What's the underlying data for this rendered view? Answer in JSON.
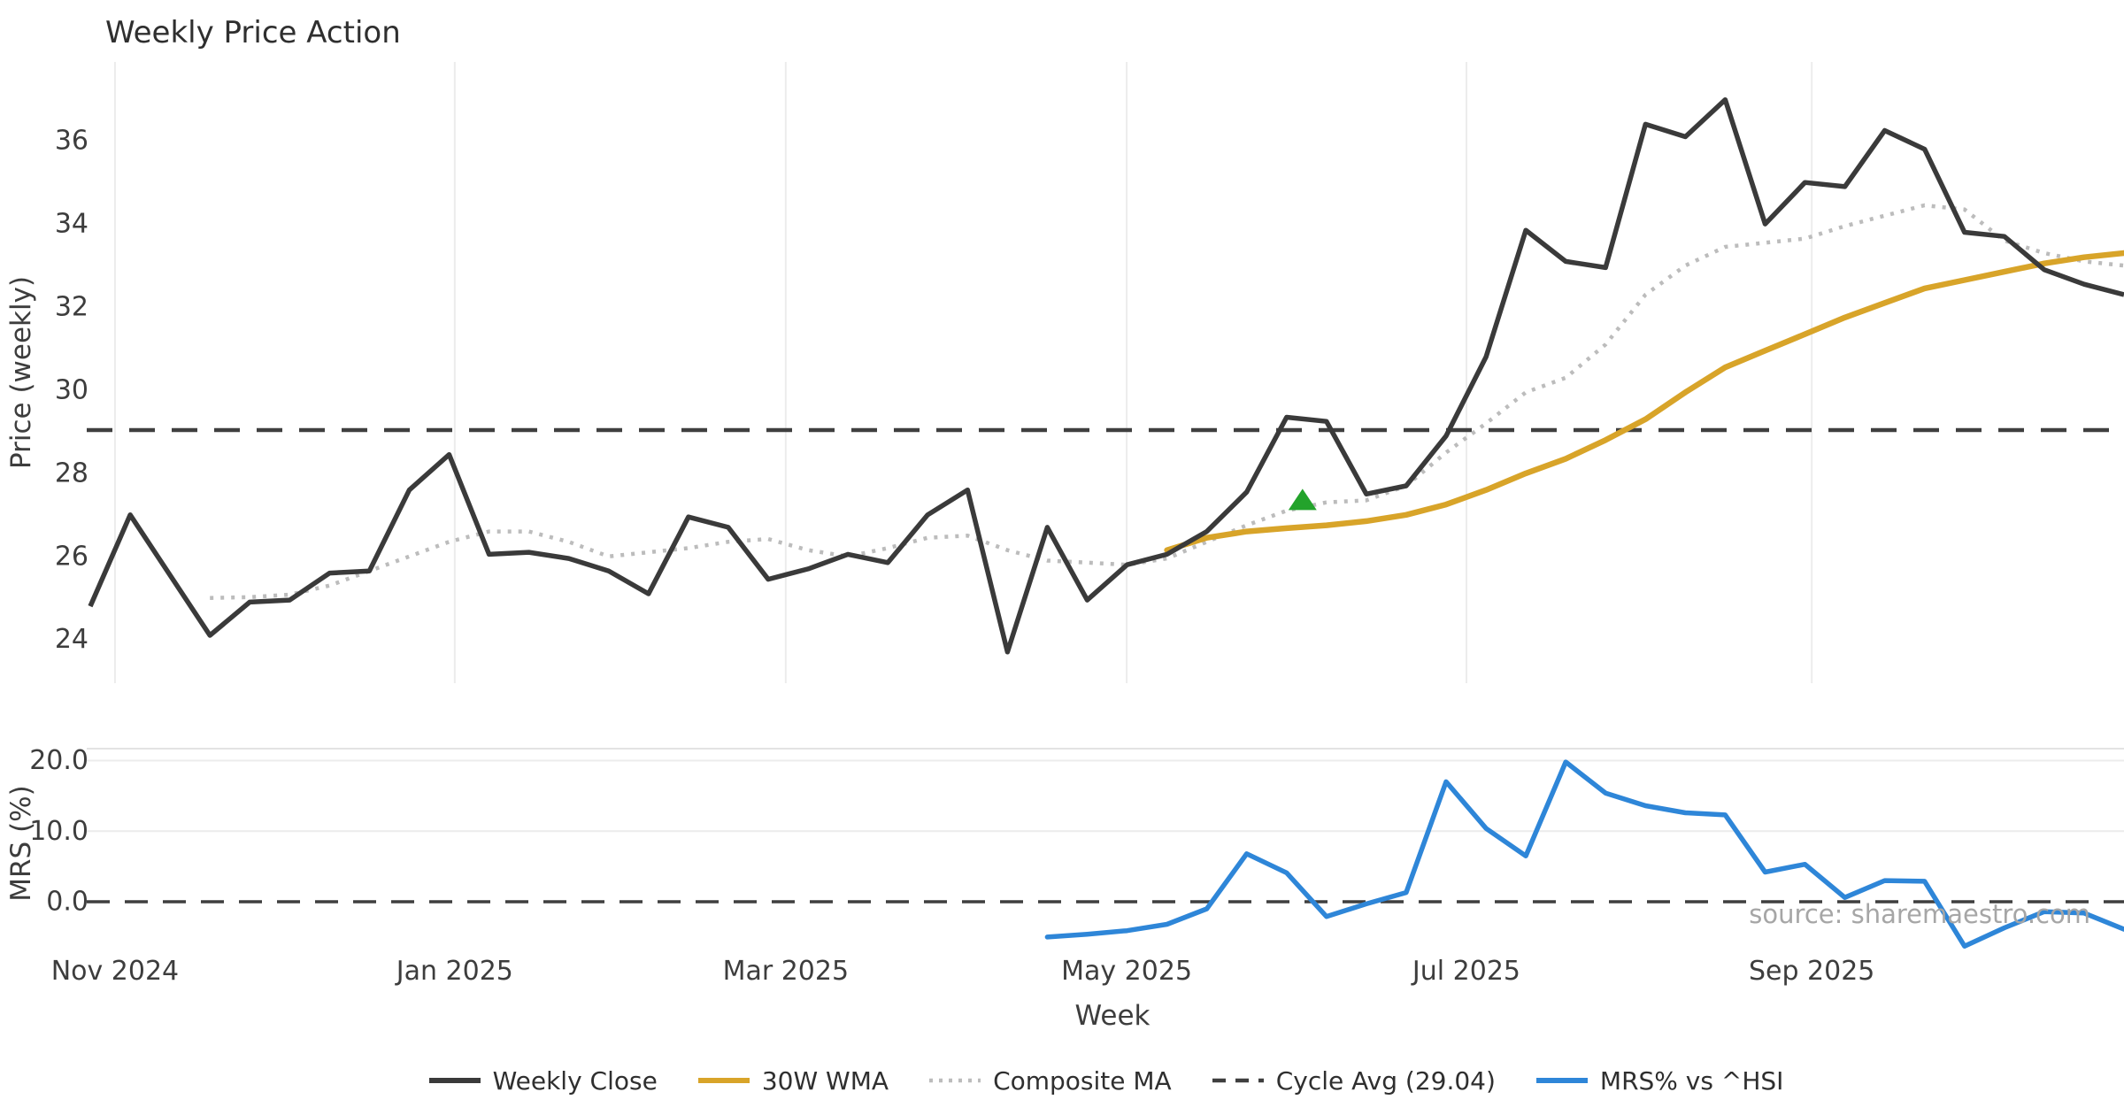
{
  "title": "Weekly Price Action",
  "source_text": "source: sharemaestro.com",
  "axes": {
    "price_label": "Price (weekly)",
    "mrs_label": "MRS (%)",
    "x_label": "Week"
  },
  "colors": {
    "weekly_close": "#3a3a3a",
    "wma": "#d8a429",
    "composite": "#bcbcbc",
    "cycle_avg": "#3f3f3f",
    "mrs": "#2e86d8",
    "signal": "#23a32b",
    "grid": "#ececec",
    "spine": "#e3e3e3",
    "text": "#3d3d3d",
    "muted": "#a6a6a6"
  },
  "chart_data": [
    {
      "type": "line",
      "panel": "price",
      "title": "Weekly Price Action",
      "ylabel": "Price (weekly)",
      "ylim": [
        22.95,
        37.9
      ],
      "yticks": [
        24,
        26,
        28,
        30,
        32,
        34,
        36
      ],
      "x_tick_labels": [
        "Nov 2024",
        "Jan 2025",
        "Mar 2025",
        "May 2025",
        "Jul 2025",
        "Sep 2025"
      ],
      "x_tick_weeks": [
        0.62,
        9.14,
        17.44,
        25.99,
        34.51,
        43.17
      ],
      "n_weeks": 52,
      "grid": "vertical",
      "cycle_avg": 29.04,
      "signal_marker": {
        "week": 30.4,
        "price": 27.35,
        "shape": "triangle-up"
      },
      "series": [
        {
          "name": "Weekly Close",
          "values": [
            24.8,
            27.0,
            25.55,
            24.1,
            24.9,
            24.95,
            25.6,
            25.65,
            27.6,
            28.45,
            26.05,
            26.1,
            25.95,
            25.65,
            25.1,
            26.95,
            26.7,
            25.45,
            25.7,
            26.05,
            25.85,
            27.0,
            27.6,
            23.7,
            26.7,
            24.95,
            25.8,
            26.05,
            26.6,
            27.55,
            29.35,
            29.25,
            27.5,
            27.7,
            28.9,
            30.8,
            33.85,
            33.1,
            32.95,
            36.4,
            36.1,
            36.99,
            34.0,
            35.0,
            34.9,
            36.25,
            35.8,
            33.8,
            33.7,
            32.9,
            32.55,
            32.3
          ]
        },
        {
          "name": "30W WMA",
          "values": [
            null,
            null,
            null,
            null,
            null,
            null,
            null,
            null,
            null,
            null,
            null,
            null,
            null,
            null,
            null,
            null,
            null,
            null,
            null,
            null,
            null,
            null,
            null,
            null,
            null,
            null,
            null,
            26.15,
            26.45,
            26.6,
            26.68,
            26.75,
            26.85,
            27.0,
            27.25,
            27.6,
            28.0,
            28.35,
            28.8,
            29.3,
            29.95,
            30.55,
            30.95,
            31.35,
            31.75,
            32.1,
            32.45,
            32.65,
            32.85,
            33.05,
            33.2,
            33.3
          ]
        },
        {
          "name": "Composite MA",
          "values": [
            null,
            null,
            null,
            25.0,
            25.02,
            25.08,
            25.3,
            25.65,
            26.0,
            26.35,
            26.6,
            26.6,
            26.35,
            26.0,
            26.1,
            26.2,
            26.35,
            26.42,
            26.15,
            26.0,
            26.2,
            26.45,
            26.5,
            26.15,
            25.9,
            25.85,
            25.8,
            25.95,
            26.35,
            26.75,
            27.1,
            27.3,
            27.35,
            27.7,
            28.5,
            29.2,
            29.95,
            30.3,
            31.1,
            32.3,
            33.0,
            33.45,
            33.55,
            33.65,
            33.95,
            34.2,
            34.45,
            34.35,
            33.6,
            33.3,
            33.1,
            33.0
          ]
        }
      ]
    },
    {
      "type": "line",
      "panel": "mrs",
      "ylabel": "MRS (%)",
      "ylim": [
        -8.8,
        21.5
      ],
      "yticks": [
        0.0,
        10.0,
        20.0
      ],
      "zero_line": 0.0,
      "grid": "horizontal",
      "series": [
        {
          "name": "MRS% vs ^HSI",
          "values": [
            null,
            null,
            null,
            null,
            null,
            null,
            null,
            null,
            null,
            null,
            null,
            null,
            null,
            null,
            null,
            null,
            null,
            null,
            null,
            null,
            null,
            null,
            null,
            null,
            -5.0,
            -4.6,
            -4.1,
            -3.2,
            -1.0,
            6.8,
            4.1,
            -2.1,
            -0.3,
            1.3,
            17.0,
            10.4,
            6.5,
            19.8,
            15.4,
            13.6,
            12.6,
            12.3,
            4.2,
            5.3,
            0.6,
            3.0,
            2.9,
            -6.3,
            -3.7,
            -1.4,
            -1.6,
            -3.9
          ]
        }
      ]
    }
  ],
  "legend": {
    "items": [
      {
        "label": "Weekly Close",
        "color": "#3a3a3a",
        "line_style": "solid"
      },
      {
        "label": "30W WMA",
        "color": "#d8a429",
        "line_style": "solid"
      },
      {
        "label": "Composite MA",
        "color": "#bcbcbc",
        "line_style": "dotted"
      },
      {
        "label": "Cycle Avg (29.04)",
        "color": "#3f3f3f",
        "line_style": "dashed"
      },
      {
        "label": "MRS% vs ^HSI",
        "color": "#2e86d8",
        "line_style": "solid"
      }
    ]
  }
}
